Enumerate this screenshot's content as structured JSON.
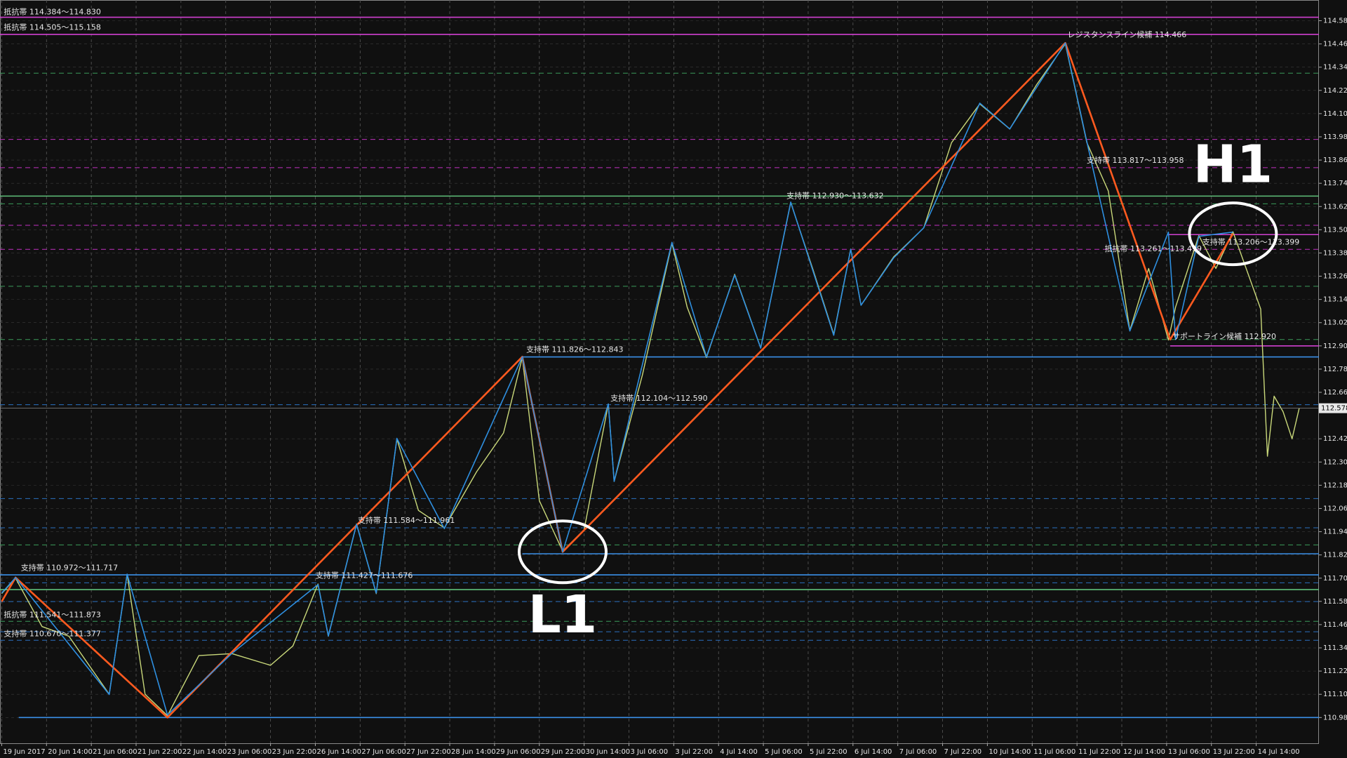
{
  "chart_data": {
    "type": "line",
    "xlim": [
      -0.038,
      29.4
    ],
    "ylim": [
      110.847,
      114.687
    ],
    "grid": true,
    "xticks": [
      {
        "value": 0,
        "label": "19 Jun 2017"
      },
      {
        "value": 1,
        "label": "20 Jun 14:00"
      },
      {
        "value": 2,
        "label": "21 Jun 06:00"
      },
      {
        "value": 3,
        "label": "21 Jun 22:00"
      },
      {
        "value": 4,
        "label": "22 Jun 14:00"
      },
      {
        "value": 5,
        "label": "23 Jun 06:00"
      },
      {
        "value": 6,
        "label": "23 Jun 22:00"
      },
      {
        "value": 7,
        "label": "26 Jun 14:00"
      },
      {
        "value": 8,
        "label": "27 Jun 06:00"
      },
      {
        "value": 9,
        "label": "27 Jun 22:00"
      },
      {
        "value": 10,
        "label": "28 Jun 14:00"
      },
      {
        "value": 11,
        "label": "29 Jun 06:00"
      },
      {
        "value": 12,
        "label": "29 Jun 22:00"
      },
      {
        "value": 13,
        "label": "30 Jun 14:00"
      },
      {
        "value": 14,
        "label": "3 Jul 06:00"
      },
      {
        "value": 15,
        "label": "3 Jul 22:00"
      },
      {
        "value": 16,
        "label": "4 Jul 14:00"
      },
      {
        "value": 17,
        "label": "5 Jul 06:00"
      },
      {
        "value": 18,
        "label": "5 Jul 22:00"
      },
      {
        "value": 19,
        "label": "6 Jul 14:00"
      },
      {
        "value": 20,
        "label": "7 Jul 06:00"
      },
      {
        "value": 21,
        "label": "7 Jul 22:00"
      },
      {
        "value": 22,
        "label": "10 Jul 14:00"
      },
      {
        "value": 23,
        "label": "11 Jul 06:00"
      },
      {
        "value": 24,
        "label": "11 Jul 22:00"
      },
      {
        "value": 25,
        "label": "12 Jul 14:00"
      },
      {
        "value": 26,
        "label": "13 Jul 06:00"
      },
      {
        "value": 27,
        "label": "13 Jul 22:00"
      },
      {
        "value": 28,
        "label": "14 Jul 14:00"
      }
    ],
    "yticks": [
      {
        "value": 114.58,
        "label": "114.580"
      },
      {
        "value": 114.46,
        "label": "114.460"
      },
      {
        "value": 114.34,
        "label": "114.340"
      },
      {
        "value": 114.22,
        "label": "114.220"
      },
      {
        "value": 114.1,
        "label": "114.100"
      },
      {
        "value": 113.98,
        "label": "113.980"
      },
      {
        "value": 113.86,
        "label": "113.860"
      },
      {
        "value": 113.74,
        "label": "113.740"
      },
      {
        "value": 113.62,
        "label": "113.620"
      },
      {
        "value": 113.5,
        "label": "113.500"
      },
      {
        "value": 113.38,
        "label": "113.380"
      },
      {
        "value": 113.26,
        "label": "113.260"
      },
      {
        "value": 113.14,
        "label": "113.140"
      },
      {
        "value": 113.02,
        "label": "113.020"
      },
      {
        "value": 112.9,
        "label": "112.900"
      },
      {
        "value": 112.78,
        "label": "112.780"
      },
      {
        "value": 112.66,
        "label": "112.660"
      },
      {
        "value": 112.42,
        "label": "112.420"
      },
      {
        "value": 112.3,
        "label": "112.300"
      },
      {
        "value": 112.18,
        "label": "112.180"
      },
      {
        "value": 112.06,
        "label": "112.060"
      },
      {
        "value": 111.94,
        "label": "111.940"
      },
      {
        "value": 111.82,
        "label": "111.820"
      },
      {
        "value": 111.7,
        "label": "111.700"
      },
      {
        "value": 111.58,
        "label": "111.580"
      },
      {
        "value": 111.46,
        "label": "111.460"
      },
      {
        "value": 111.34,
        "label": "111.340"
      },
      {
        "value": 111.22,
        "label": "111.220"
      },
      {
        "value": 111.1,
        "label": "111.100"
      },
      {
        "value": 110.98,
        "label": "110.980"
      }
    ],
    "current_price": 112.578,
    "series": [
      {
        "color": "#c9d87a",
        "width": 1.4,
        "x": [
          0,
          0.31,
          0.9,
          1.5,
          2.4,
          2.8,
          3.2,
          3.7,
          4.4,
          5.14,
          6.0,
          6.5,
          7.06,
          7.29,
          7.92,
          8.36,
          8.82,
          9.3,
          9.88,
          10.6,
          11.2,
          11.62,
          12.0,
          12.52,
          13.0,
          13.54,
          13.67,
          14.3,
          14.96,
          15.3,
          15.73,
          16.36,
          16.94,
          17.61,
          18.1,
          18.57,
          18.95,
          19.18,
          19.91,
          20.58,
          21.2,
          21.83,
          22.5,
          23.1,
          23.74,
          24.22,
          24.7,
          25.18,
          25.6,
          26.04,
          26.2,
          26.72,
          27.1,
          27.48,
          27.9,
          28.1,
          28.25,
          28.4,
          28.6,
          28.8,
          28.96
        ],
        "values": [
          111.62,
          111.7,
          111.45,
          111.4,
          111.1,
          111.72,
          111.1,
          110.99,
          111.3,
          111.31,
          111.25,
          111.35,
          111.67,
          111.4,
          111.98,
          111.62,
          112.42,
          112.05,
          111.96,
          112.25,
          112.45,
          112.84,
          112.1,
          111.84,
          111.95,
          112.6,
          112.2,
          112.75,
          113.43,
          113.1,
          112.84,
          113.27,
          112.89,
          113.64,
          113.3,
          112.96,
          113.4,
          113.11,
          113.36,
          113.51,
          113.95,
          114.15,
          114.02,
          114.25,
          114.46,
          113.95,
          113.7,
          112.98,
          113.3,
          112.93,
          113.1,
          113.47,
          113.3,
          113.49,
          113.22,
          113.09,
          112.33,
          112.64,
          112.56,
          112.42,
          112.578
        ]
      },
      {
        "color": "#ff5a1f",
        "width": 2.6,
        "x": [
          0,
          0.31,
          3.7,
          11.62,
          12.52,
          23.74,
          26.08,
          27.48
        ],
        "values": [
          111.579,
          111.703,
          110.98,
          112.844,
          111.836,
          114.465,
          112.933,
          113.479
        ]
      },
      {
        "color": "#2e8fe0",
        "width": 1.6,
        "x": [
          0,
          0.31,
          2.4,
          2.8,
          3.7,
          5.14,
          7.06,
          7.29,
          7.92,
          8.36,
          8.82,
          9.88,
          11.62,
          12.52,
          13.54,
          13.67,
          14.96,
          15.73,
          16.36,
          16.94,
          17.61,
          18.57,
          18.95,
          19.18,
          19.91,
          20.58,
          21.83,
          22.5,
          23.74,
          24.22,
          25.18,
          26.04,
          26.2,
          26.72,
          27.48
        ],
        "values": [
          111.623,
          111.703,
          111.099,
          111.721,
          110.993,
          111.312,
          111.667,
          111.401,
          111.978,
          111.623,
          112.422,
          111.956,
          112.844,
          111.836,
          112.6,
          112.2,
          113.435,
          112.844,
          113.266,
          112.888,
          113.643,
          112.955,
          113.399,
          113.11,
          113.355,
          113.51,
          114.154,
          114.021,
          114.465,
          113.954,
          112.977,
          113.488,
          112.933,
          113.466,
          113.488
        ]
      }
    ],
    "levels": [
      {
        "value": 114.598,
        "color": "#d040d0",
        "style": "solid"
      },
      {
        "value": 114.509,
        "color": "#d040d0",
        "style": "solid"
      },
      {
        "value": 114.309,
        "color": "#3a9a5a",
        "style": "dash"
      },
      {
        "value": 113.967,
        "color": "#c030c0",
        "style": "dash"
      },
      {
        "value": 113.821,
        "color": "#c030c0",
        "style": "dash"
      },
      {
        "value": 113.674,
        "color": "#5fc07a",
        "style": "solid"
      },
      {
        "value": 113.634,
        "color": "#3a9a5a",
        "style": "dash"
      },
      {
        "value": 113.523,
        "color": "#c030c0",
        "style": "dash"
      },
      {
        "value": 113.475,
        "color": "#d040d0",
        "style": "solid",
        "from": 26.04
      },
      {
        "value": 113.399,
        "color": "#c030c0",
        "style": "dash"
      },
      {
        "value": 113.208,
        "color": "#3a9a5a",
        "style": "dash"
      },
      {
        "value": 112.933,
        "color": "#3a9a5a",
        "style": "dash"
      },
      {
        "value": 112.9,
        "color": "#d040d0",
        "style": "solid",
        "from": 26.08
      },
      {
        "value": 112.843,
        "color": "#3a8fe8",
        "style": "solid",
        "from": 11.62
      },
      {
        "value": 112.596,
        "color": "#2a70c0",
        "style": "dash"
      },
      {
        "value": 112.111,
        "color": "#2a70c0",
        "style": "dash"
      },
      {
        "value": 111.96,
        "color": "#2a70c0",
        "style": "dash"
      },
      {
        "value": 111.872,
        "color": "#3a9a5a",
        "style": "dash"
      },
      {
        "value": 111.826,
        "color": "#3a8fe8",
        "style": "solid",
        "from": 11.62
      },
      {
        "value": 111.717,
        "color": "#3a8fe8",
        "style": "solid"
      },
      {
        "value": 111.676,
        "color": "#2a70c0",
        "style": "dash"
      },
      {
        "value": 111.641,
        "color": "#5fc07a",
        "style": "solid"
      },
      {
        "value": 111.579,
        "color": "#2a70c0",
        "style": "dash"
      },
      {
        "value": 111.477,
        "color": "#3a9a5a",
        "style": "dash"
      },
      {
        "value": 111.423,
        "color": "#2a70c0",
        "style": "dash"
      },
      {
        "value": 111.379,
        "color": "#2a70c0",
        "style": "dash"
      },
      {
        "value": 110.98,
        "color": "#3a8fe8",
        "style": "solid",
        "from": 0.38
      }
    ],
    "annotations": [
      {
        "text": "抵抗帯 114.384～114.830",
        "x": 0,
        "y": 114.624
      },
      {
        "text": "抵抗帯 114.505～115.158",
        "x": 0,
        "y": 114.544
      },
      {
        "text": "レジスタンスライン候補 114.466",
        "x": 23.74,
        "y": 114.505
      },
      {
        "text": "支持帯 113.817～113.958",
        "x": 24.17,
        "y": 113.856
      },
      {
        "text": "支持帯 112.930～113.632",
        "x": 17.47,
        "y": 113.674
      },
      {
        "text": "抵抗帯 113.261～113.499",
        "x": 24.57,
        "y": 113.399
      },
      {
        "text": "支持帯 113.206～113.399",
        "x": 26.75,
        "y": 113.434
      },
      {
        "text": "サポートライン候補 112.920",
        "x": 26.08,
        "y": 112.946
      },
      {
        "text": "支持帯 111.826～112.843",
        "x": 11.66,
        "y": 112.88
      },
      {
        "text": "支持帯 112.104～112.590",
        "x": 13.54,
        "y": 112.627
      },
      {
        "text": "支持帯 111.584～111.961",
        "x": 7.9,
        "y": 111.996
      },
      {
        "text": "支持帯 111.427～111.676",
        "x": 6.96,
        "y": 111.712
      },
      {
        "text": "支持帯 110.972～111.717",
        "x": 0.38,
        "y": 111.752
      },
      {
        "text": "抵抗帯 111.541～111.873",
        "x": 0,
        "y": 111.508
      },
      {
        "text": "支持帯 110.670～111.377",
        "x": 0,
        "y": 111.41
      }
    ],
    "markers": [
      {
        "label": "L1",
        "x": 12.52,
        "y": 111.836,
        "position": "below"
      },
      {
        "label": "H1",
        "x": 27.48,
        "y": 113.479,
        "position": "above"
      }
    ]
  }
}
